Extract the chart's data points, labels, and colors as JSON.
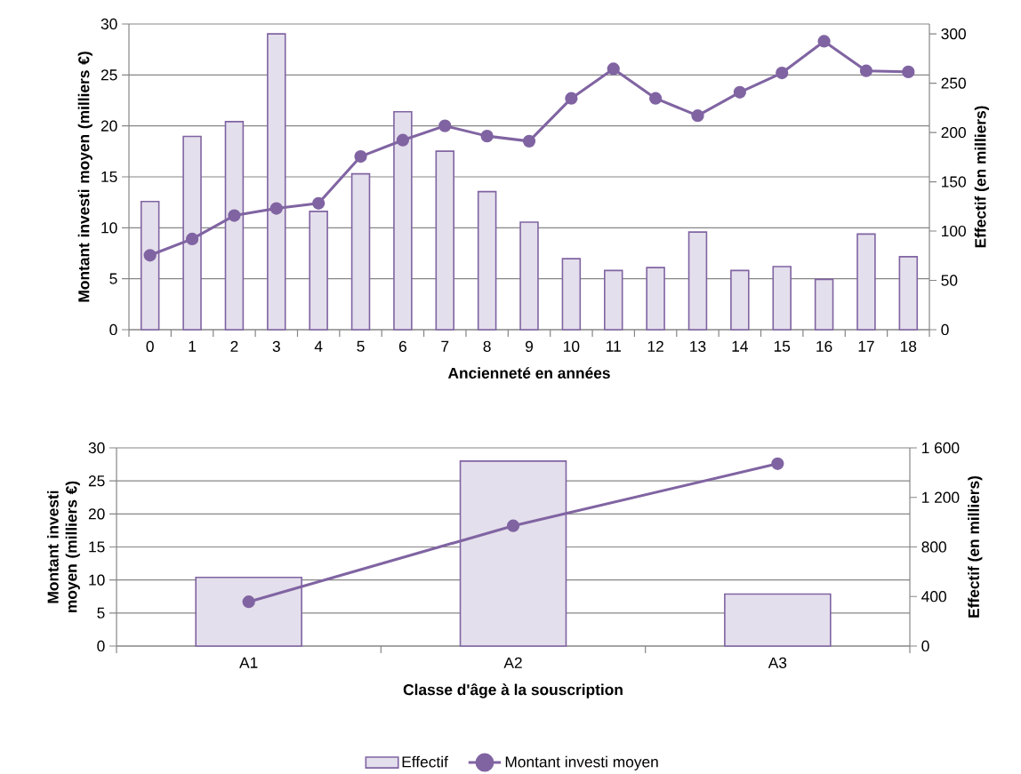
{
  "chart_data": [
    {
      "type": "bar",
      "categories": [
        "0",
        "1",
        "2",
        "3",
        "4",
        "5",
        "6",
        "7",
        "8",
        "9",
        "10",
        "11",
        "12",
        "13",
        "14",
        "15",
        "16",
        "17",
        "18"
      ],
      "xlabel": "Ancienneté en années",
      "ylabel": "Montant investi moyen (milliers €)",
      "y2label": "Effectif (en milliers)",
      "ylim": [
        0,
        30
      ],
      "yticks": [
        0,
        5,
        10,
        15,
        20,
        25,
        30
      ],
      "y2lim": [
        0,
        310
      ],
      "y2ticks": [
        0,
        50,
        100,
        150,
        200,
        250,
        300
      ],
      "grid": "y",
      "marker": "circle",
      "series": [
        {
          "axis": "y2",
          "color": "#e4dfec",
          "values": [
            130,
            196,
            211,
            300,
            120,
            158,
            221,
            181,
            140,
            109,
            72,
            60,
            63,
            99,
            60,
            64,
            51,
            97,
            74
          ]
        },
        {
          "type": "line",
          "color": "#8064a2",
          "values": [
            7.3,
            8.9,
            11.2,
            11.9,
            12.4,
            17.0,
            18.6,
            20.0,
            19.0,
            18.5,
            22.7,
            25.6,
            22.7,
            21.0,
            23.3,
            25.2,
            28.3,
            25.4,
            25.3
          ]
        }
      ]
    },
    {
      "type": "bar",
      "categories": [
        "A1",
        "A2",
        "A3"
      ],
      "xlabel": "Classe d'âge à la souscription",
      "ylabel": "Montant investi moyen (milliers €)",
      "y2label": "Effectif (en milliers)",
      "ylim": [
        0,
        30
      ],
      "yticks": [
        0,
        5,
        10,
        15,
        20,
        25,
        30
      ],
      "y2lim": [
        0,
        1600
      ],
      "y2ticks": [
        0,
        {
          "value": 400,
          "label": "400"
        },
        {
          "value": 800,
          "label": "800"
        },
        {
          "value": 1200,
          "label": "1 200"
        },
        {
          "value": 1600,
          "label": "1 600"
        }
      ],
      "grid": "y",
      "marker": "circle",
      "legend": "bottom",
      "series": [
        {
          "name": "Effectif",
          "axis": "y2",
          "color": "#e4dfec",
          "values": [
            554,
            1493,
            420
          ]
        },
        {
          "name": "Montant investi moyen",
          "type": "line",
          "color": "#8064a2",
          "values": [
            6.7,
            18.2,
            27.6
          ]
        }
      ]
    }
  ]
}
